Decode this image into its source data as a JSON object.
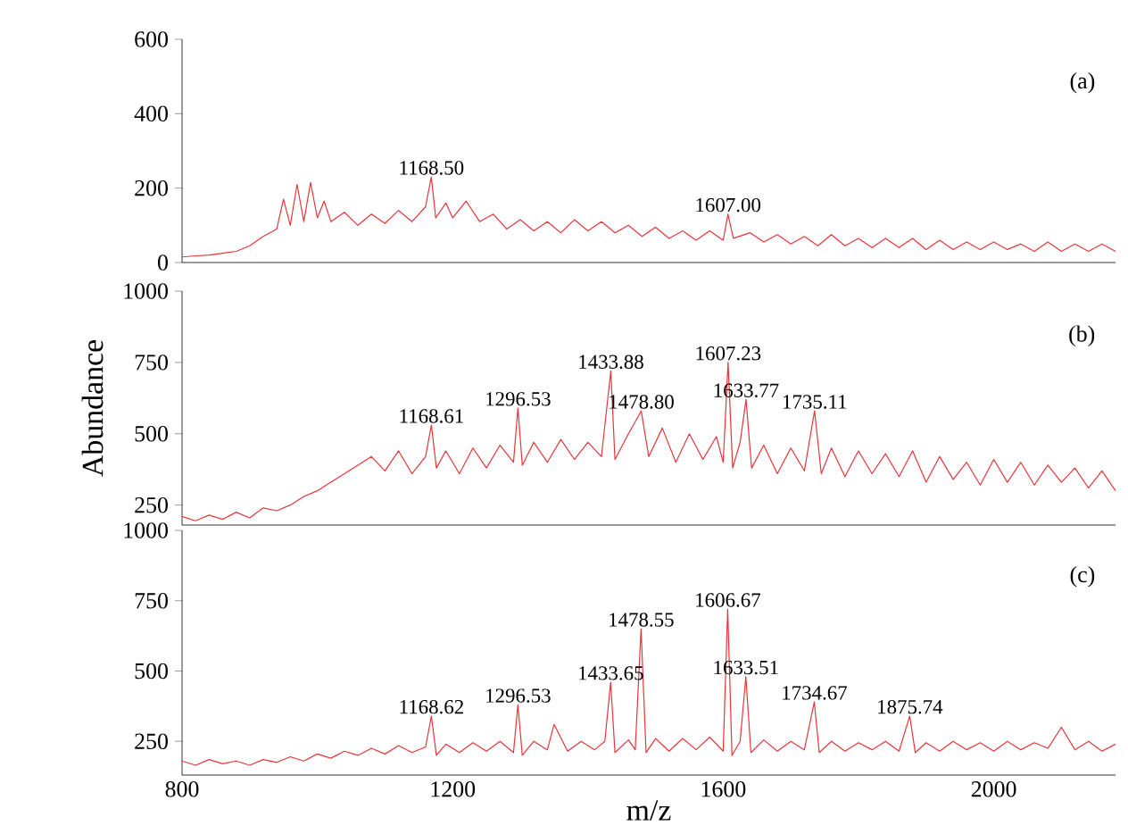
{
  "chart_data": [
    {
      "type": "line",
      "xlim": [
        800,
        2180
      ],
      "ylim": [
        0,
        600
      ],
      "yticks": [
        0,
        200,
        400,
        600
      ],
      "tick_labels": "y",
      "x": [
        800,
        820,
        840,
        860,
        880,
        900,
        920,
        940,
        950,
        960,
        970,
        980,
        990,
        1000,
        1010,
        1020,
        1040,
        1060,
        1080,
        1100,
        1120,
        1140,
        1160,
        1168.5,
        1175,
        1190,
        1200,
        1220,
        1240,
        1260,
        1280,
        1300,
        1320,
        1340,
        1360,
        1380,
        1400,
        1420,
        1440,
        1460,
        1480,
        1500,
        1520,
        1540,
        1560,
        1580,
        1600,
        1607,
        1615,
        1640,
        1660,
        1680,
        1700,
        1720,
        1740,
        1760,
        1780,
        1800,
        1820,
        1840,
        1860,
        1880,
        1900,
        1920,
        1940,
        1960,
        1980,
        2000,
        2020,
        2040,
        2060,
        2080,
        2100,
        2120,
        2140,
        2160,
        2180
      ],
      "series": [
        {
          "color": "#e8353a",
          "values": [
            15,
            18,
            20,
            25,
            30,
            45,
            70,
            90,
            170,
            100,
            210,
            110,
            215,
            120,
            165,
            110,
            135,
            100,
            130,
            105,
            140,
            110,
            150,
            230,
            120,
            160,
            120,
            165,
            110,
            130,
            90,
            115,
            85,
            110,
            80,
            115,
            85,
            110,
            80,
            100,
            70,
            95,
            65,
            85,
            60,
            85,
            60,
            130,
            65,
            80,
            55,
            75,
            50,
            70,
            45,
            75,
            45,
            65,
            40,
            65,
            40,
            65,
            35,
            60,
            35,
            55,
            35,
            55,
            35,
            50,
            30,
            55,
            30,
            50,
            30,
            50,
            30
          ]
        }
      ],
      "annotations": [
        {
          "text": "1168.50",
          "x": 1168.5,
          "y": 230
        },
        {
          "text": "1607.00",
          "x": 1607,
          "y": 130
        },
        "(a)"
      ]
    },
    {
      "type": "line",
      "xlim": [
        800,
        2180
      ],
      "ylim": [
        180,
        1000
      ],
      "yticks": [
        250,
        500,
        750,
        1000
      ],
      "tick_labels": "y",
      "ylabel": "Abundance",
      "x": [
        800,
        820,
        840,
        860,
        880,
        900,
        920,
        940,
        960,
        980,
        1000,
        1020,
        1040,
        1060,
        1080,
        1100,
        1120,
        1140,
        1160,
        1168.61,
        1176,
        1190,
        1210,
        1230,
        1250,
        1270,
        1290,
        1296.53,
        1303,
        1320,
        1340,
        1360,
        1380,
        1400,
        1420,
        1433.88,
        1440,
        1460,
        1478.8,
        1490,
        1510,
        1530,
        1550,
        1570,
        1590,
        1600,
        1607.23,
        1614,
        1625,
        1633.77,
        1642,
        1660,
        1680,
        1700,
        1720,
        1735.11,
        1745,
        1760,
        1780,
        1800,
        1820,
        1840,
        1860,
        1880,
        1900,
        1920,
        1940,
        1960,
        1980,
        2000,
        2020,
        2040,
        2060,
        2080,
        2100,
        2120,
        2140,
        2160,
        2180
      ],
      "series": [
        {
          "color": "#e8353a",
          "values": [
            210,
            195,
            215,
            200,
            225,
            205,
            240,
            230,
            250,
            280,
            300,
            330,
            360,
            390,
            420,
            370,
            440,
            360,
            420,
            530,
            380,
            440,
            360,
            450,
            380,
            460,
            400,
            590,
            390,
            470,
            400,
            480,
            410,
            470,
            420,
            720,
            410,
            500,
            580,
            420,
            520,
            400,
            500,
            410,
            490,
            400,
            750,
            380,
            470,
            620,
            380,
            460,
            360,
            450,
            370,
            580,
            360,
            450,
            350,
            440,
            360,
            430,
            350,
            440,
            330,
            420,
            340,
            400,
            320,
            410,
            330,
            400,
            320,
            390,
            330,
            380,
            310,
            370,
            300
          ]
        }
      ],
      "annotations": [
        {
          "text": "1168.61",
          "x": 1168.61,
          "y": 530
        },
        {
          "text": "1296.53",
          "x": 1296.53,
          "y": 590
        },
        {
          "text": "1433.88",
          "x": 1433.88,
          "y": 720
        },
        {
          "text": "1478.80",
          "x": 1478.8,
          "y": 580
        },
        {
          "text": "1607.23",
          "x": 1607.23,
          "y": 750
        },
        {
          "text": "1633.77",
          "x": 1633.77,
          "y": 620
        },
        {
          "text": "1735.11",
          "x": 1735.11,
          "y": 580
        },
        "(b)"
      ]
    },
    {
      "type": "line",
      "xlim": [
        800,
        2180
      ],
      "ylim": [
        130,
        1000
      ],
      "xticks": [
        800,
        1200,
        1600,
        2000
      ],
      "yticks": [
        250,
        500,
        750,
        1000
      ],
      "xlabel": "m/z",
      "x": [
        800,
        820,
        840,
        860,
        880,
        900,
        920,
        940,
        960,
        980,
        1000,
        1020,
        1040,
        1060,
        1080,
        1100,
        1120,
        1140,
        1160,
        1168.62,
        1176,
        1190,
        1210,
        1230,
        1250,
        1270,
        1290,
        1296.53,
        1303,
        1320,
        1340,
        1350,
        1370,
        1390,
        1410,
        1425,
        1433.65,
        1440,
        1460,
        1470,
        1478.55,
        1486,
        1500,
        1520,
        1540,
        1560,
        1580,
        1600,
        1606.67,
        1613,
        1625,
        1633.51,
        1641,
        1660,
        1680,
        1700,
        1720,
        1734.67,
        1742,
        1760,
        1780,
        1800,
        1820,
        1840,
        1860,
        1875.74,
        1884,
        1900,
        1920,
        1940,
        1960,
        1980,
        2000,
        2020,
        2040,
        2060,
        2080,
        2100,
        2120,
        2140,
        2160,
        2180
      ],
      "series": [
        {
          "color": "#e8353a",
          "values": [
            180,
            165,
            185,
            170,
            180,
            165,
            185,
            175,
            195,
            180,
            205,
            190,
            215,
            200,
            225,
            205,
            235,
            210,
            230,
            340,
            200,
            240,
            210,
            245,
            215,
            250,
            210,
            380,
            200,
            250,
            220,
            310,
            215,
            250,
            220,
            250,
            460,
            210,
            255,
            220,
            650,
            210,
            260,
            215,
            260,
            220,
            265,
            215,
            720,
            200,
            250,
            480,
            210,
            255,
            215,
            250,
            220,
            390,
            210,
            250,
            215,
            245,
            220,
            250,
            215,
            340,
            210,
            245,
            215,
            250,
            220,
            245,
            215,
            250,
            220,
            245,
            225,
            300,
            220,
            250,
            215,
            240
          ]
        }
      ],
      "annotations": [
        {
          "text": "1168.62",
          "x": 1168.62,
          "y": 340
        },
        {
          "text": "1296.53",
          "x": 1296.53,
          "y": 380
        },
        {
          "text": "1433.65",
          "x": 1433.65,
          "y": 460
        },
        {
          "text": "1478.55",
          "x": 1478.55,
          "y": 650
        },
        {
          "text": "1606.67",
          "x": 1606.67,
          "y": 720
        },
        {
          "text": "1633.51",
          "x": 1633.51,
          "y": 480
        },
        {
          "text": "1734.67",
          "x": 1734.67,
          "y": 390
        },
        {
          "text": "1875.74",
          "x": 1875.74,
          "y": 340
        },
        "(c)"
      ]
    }
  ]
}
